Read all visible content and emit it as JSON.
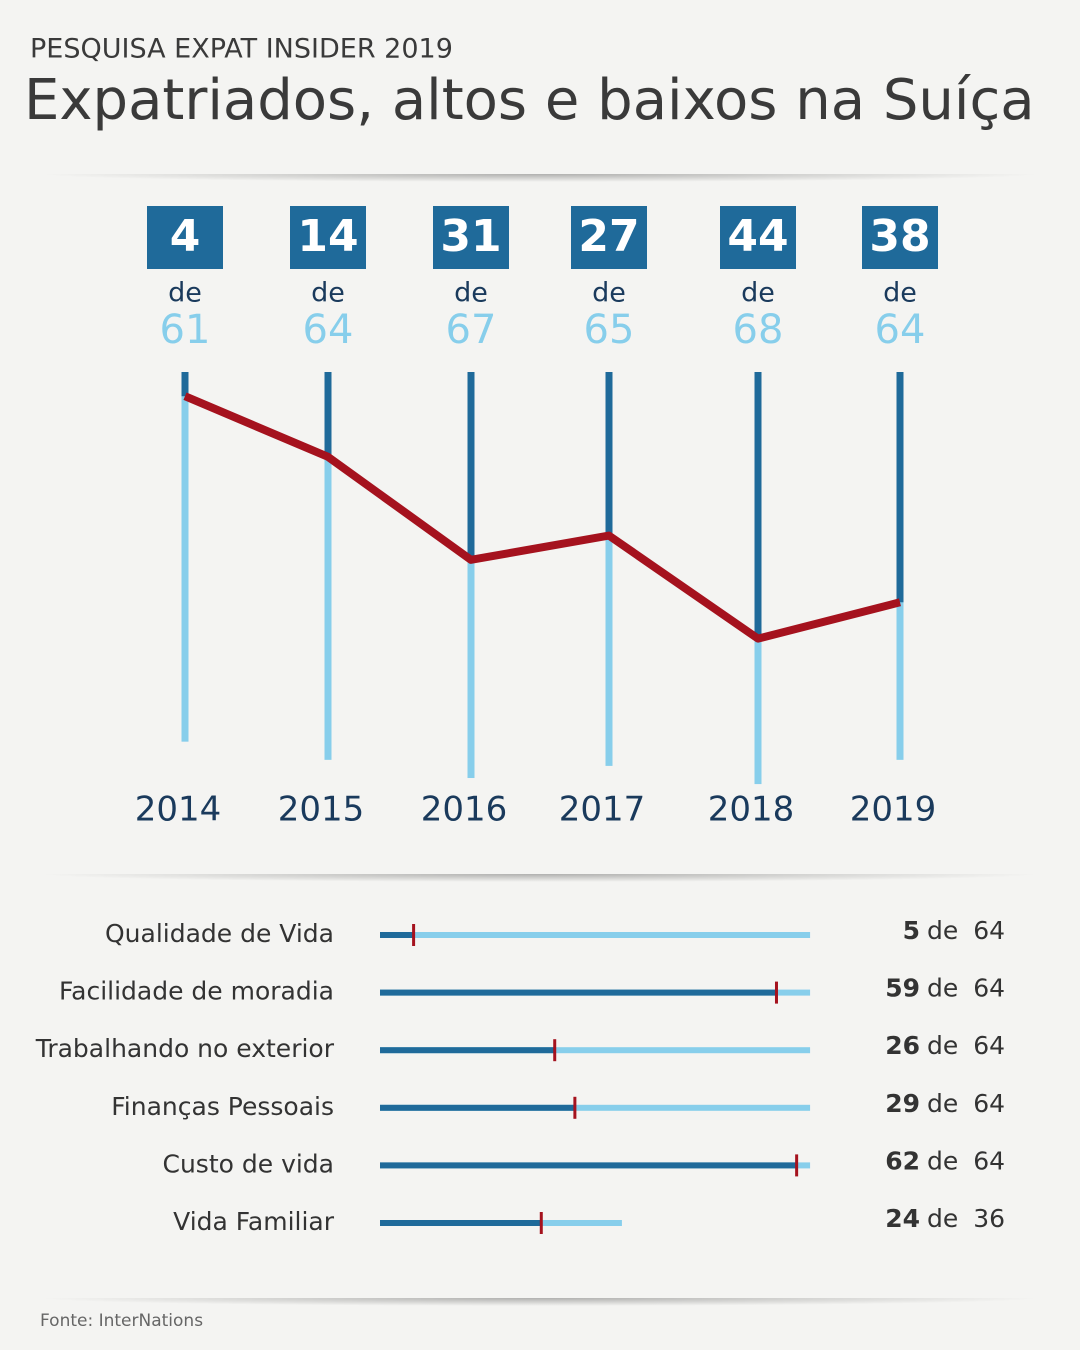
{
  "header": {
    "kicker": "PESQUISA EXPAT INSIDER 2019",
    "title": "Expatriados, altos e baixos na Suíça"
  },
  "chart_data": [
    {
      "type": "rank-line",
      "categories": [
        "2014",
        "2015",
        "2016",
        "2017",
        "2018",
        "2019"
      ],
      "values": [
        4,
        14,
        31,
        27,
        44,
        38
      ],
      "totals": [
        61,
        64,
        67,
        65,
        68,
        64
      ],
      "connector": "de",
      "color": "#a5121e",
      "rank_color": "#1f6a9a",
      "total_color": "#87ceeb"
    },
    {
      "type": "rank-bar",
      "categories": [
        "Qualidade de Vida",
        "Facilidade de moradia",
        "Trabalhando no exterior",
        "Finanças Pessoais",
        "Custo de vida",
        "Vida Familiar"
      ],
      "values": [
        5,
        59,
        26,
        29,
        62,
        24
      ],
      "totals": [
        64,
        64,
        64,
        64,
        64,
        36
      ],
      "connector": "de",
      "color": "#a5121e",
      "rank_color": "#1f6a9a",
      "total_color": "#87ceeb"
    }
  ],
  "source": "Fonte:  InterNations"
}
